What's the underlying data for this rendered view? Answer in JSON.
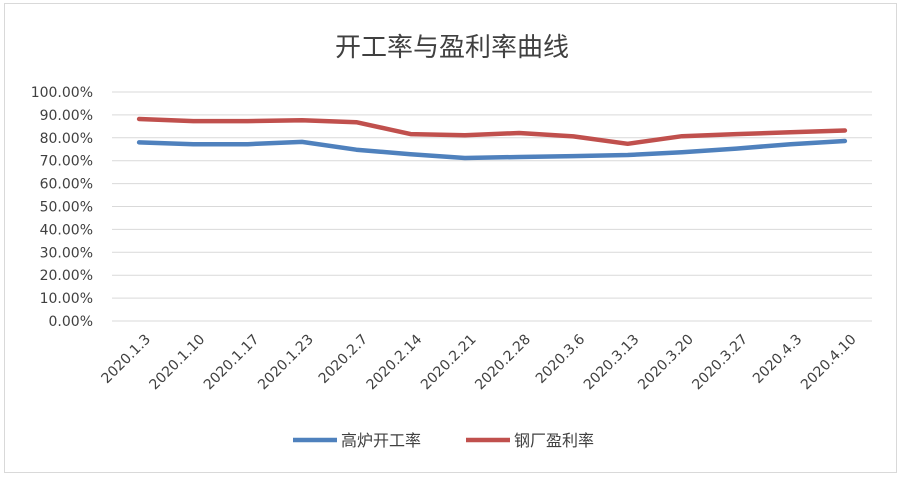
{
  "chart_data": {
    "type": "line",
    "title": "开工率与盈利率曲线",
    "xlabel": "",
    "ylabel": "",
    "categories": [
      "2020.1.3",
      "2020.1.10",
      "2020.1.17",
      "2020.1.23",
      "2020.2.7",
      "2020.2.14",
      "2020.2.21",
      "2020.2.28",
      "2020.3.6",
      "2020.3.13",
      "2020.3.20",
      "2020.3.27",
      "2020.4.3",
      "2020.4.10"
    ],
    "y_ticks": [
      "100.00%",
      "90.00%",
      "80.00%",
      "70.00%",
      "60.00%",
      "50.00%",
      "40.00%",
      "30.00%",
      "20.00%",
      "10.00%",
      "0.00%"
    ],
    "ylim": [
      0,
      100
    ],
    "grid": true,
    "legend_position": "bottom",
    "series": [
      {
        "name": "高炉开工率",
        "color": "#4f81bd",
        "values": [
          78.0,
          77.2,
          77.2,
          78.2,
          74.8,
          72.8,
          71.2,
          71.6,
          72.0,
          72.5,
          73.7,
          75.3,
          77.2,
          78.6
        ]
      },
      {
        "name": "钢厂盈利率",
        "color": "#c0504d",
        "values": [
          88.2,
          87.3,
          87.3,
          87.7,
          86.8,
          81.6,
          81.1,
          82.1,
          80.6,
          77.4,
          80.7,
          81.6,
          82.4,
          83.2
        ]
      }
    ]
  }
}
